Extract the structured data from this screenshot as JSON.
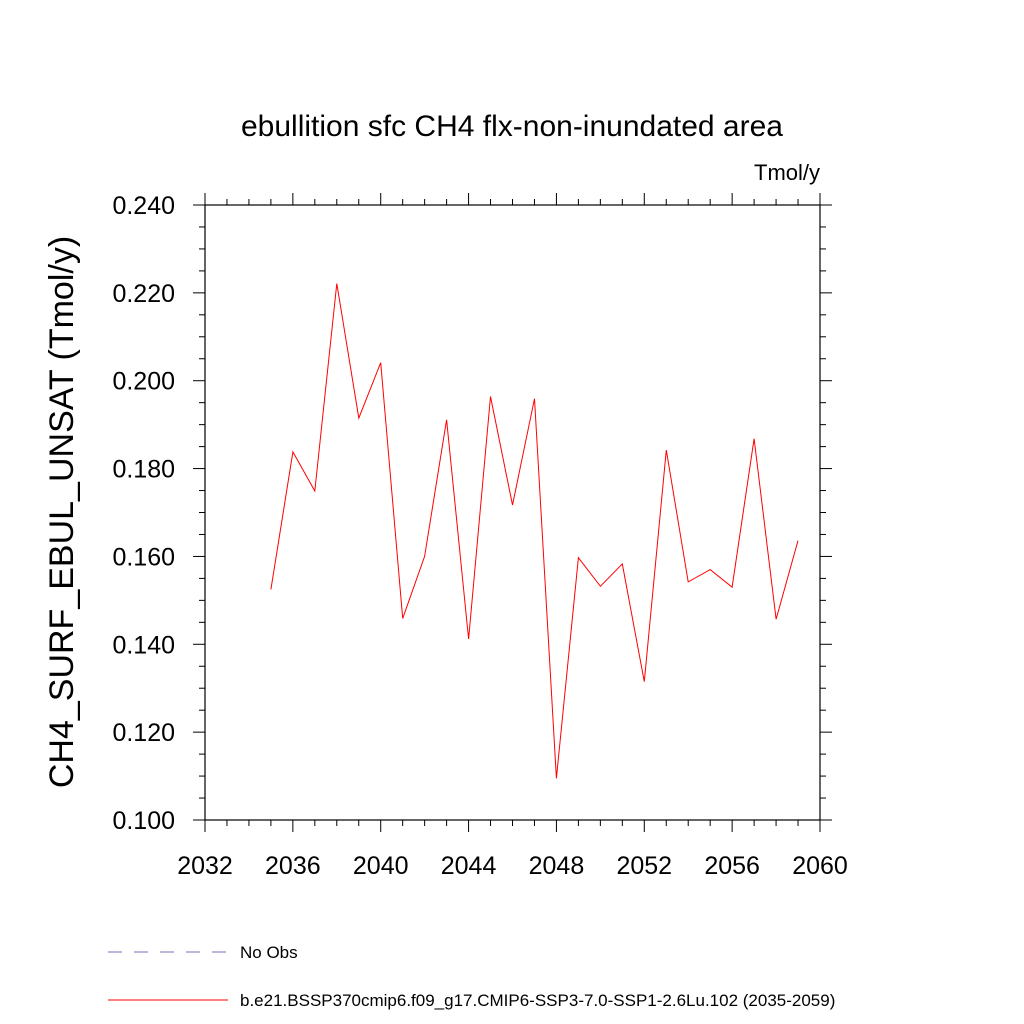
{
  "chart_data": {
    "type": "line",
    "title": "ebullition sfc CH4 flx-non-inundated area",
    "units_label": "Tmol/y",
    "ylabel": "CH4_SURF_EBUL_UNSAT  (Tmol/y)",
    "xlabel": "",
    "xlim": [
      2032,
      2060
    ],
    "ylim": [
      0.1,
      0.24
    ],
    "x_major_ticks": [
      2032,
      2036,
      2040,
      2044,
      2048,
      2052,
      2056,
      2060
    ],
    "x_tick_labels": [
      "2032",
      "2036",
      "2040",
      "2044",
      "2048",
      "2052",
      "2056",
      "2060"
    ],
    "x_minor_step": 1,
    "y_major_ticks": [
      0.1,
      0.12,
      0.14,
      0.16,
      0.18,
      0.2,
      0.22,
      0.24
    ],
    "y_tick_labels": [
      "0.100",
      "0.120",
      "0.140",
      "0.160",
      "0.180",
      "0.200",
      "0.220",
      "0.240"
    ],
    "y_minor_step": 0.005,
    "grid": false,
    "series": [
      {
        "name": "b.e21.BSSP370cmip6.f09_g17.CMIP6-SSP3-7.0-SSP1-2.6Lu.102 (2035-2059)",
        "color": "#ff0000",
        "x": [
          2035,
          2036,
          2037,
          2038,
          2039,
          2040,
          2041,
          2042,
          2043,
          2044,
          2045,
          2046,
          2047,
          2048,
          2049,
          2050,
          2051,
          2052,
          2053,
          2054,
          2055,
          2056,
          2057,
          2058,
          2059
        ],
        "y": [
          0.1525,
          0.1838,
          0.1749,
          0.2221,
          0.1915,
          0.2041,
          0.1459,
          0.16,
          0.1911,
          0.1412,
          0.1964,
          0.1717,
          0.1959,
          0.1095,
          0.1597,
          0.1532,
          0.1583,
          0.1315,
          0.1842,
          0.1542,
          0.157,
          0.153,
          0.1868,
          0.1457,
          0.1636
        ]
      }
    ],
    "legend": {
      "placement": "bottom-left",
      "entries": [
        {
          "label": "No Obs",
          "color": "#7a6fb0",
          "style": "dashed"
        },
        {
          "label": "b.e21.BSSP370cmip6.f09_g17.CMIP6-SSP3-7.0-SSP1-2.6Lu.102 (2035-2059)",
          "color": "#ff0000",
          "style": "solid"
        }
      ]
    }
  }
}
